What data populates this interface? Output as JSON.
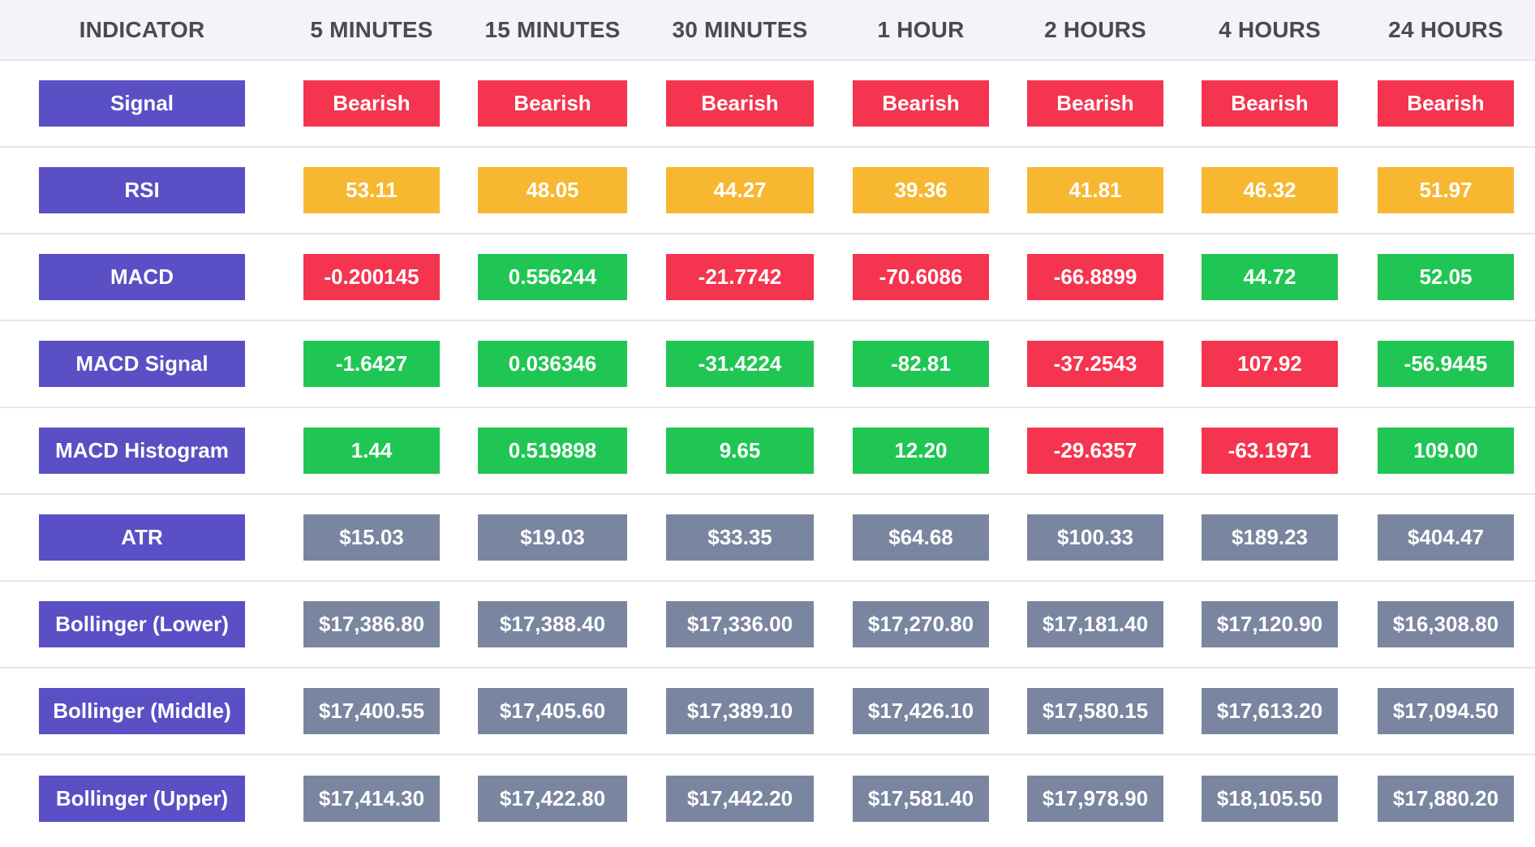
{
  "header": {
    "columns": [
      "INDICATOR",
      "5 MINUTES",
      "15 MINUTES",
      "30 MINUTES",
      "1 HOUR",
      "2 HOURS",
      "4 HOURS",
      "24 HOURS"
    ]
  },
  "colors": {
    "indicator": "#5a4fc4",
    "bearish": "#f5344f",
    "neutral": "#f7b731",
    "bullish": "#20c653",
    "price": "#7a86a0",
    "header_bg": "#f3f3f8"
  },
  "rows": [
    {
      "indicator": "Signal",
      "values": [
        "Bearish",
        "Bearish",
        "Bearish",
        "Bearish",
        "Bearish",
        "Bearish",
        "Bearish"
      ],
      "states": [
        "bear",
        "bear",
        "bear",
        "bear",
        "bear",
        "bear",
        "bear"
      ]
    },
    {
      "indicator": "RSI",
      "values": [
        "53.11",
        "48.05",
        "44.27",
        "39.36",
        "41.81",
        "46.32",
        "51.97"
      ],
      "states": [
        "neutral",
        "neutral",
        "neutral",
        "neutral",
        "neutral",
        "neutral",
        "neutral"
      ]
    },
    {
      "indicator": "MACD",
      "values": [
        "-0.200145",
        "0.556244",
        "-21.7742",
        "-70.6086",
        "-66.8899",
        "44.72",
        "52.05"
      ],
      "states": [
        "bear",
        "bull",
        "bear",
        "bear",
        "bear",
        "bull",
        "bull"
      ]
    },
    {
      "indicator": "MACD Signal",
      "values": [
        "-1.6427",
        "0.036346",
        "-31.4224",
        "-82.81",
        "-37.2543",
        "107.92",
        "-56.9445"
      ],
      "states": [
        "bull",
        "bull",
        "bull",
        "bull",
        "bear",
        "bear",
        "bull"
      ]
    },
    {
      "indicator": "MACD Histogram",
      "values": [
        "1.44",
        "0.519898",
        "9.65",
        "12.20",
        "-29.6357",
        "-63.1971",
        "109.00"
      ],
      "states": [
        "bull",
        "bull",
        "bull",
        "bull",
        "bear",
        "bear",
        "bull"
      ]
    },
    {
      "indicator": "ATR",
      "values": [
        "$15.03",
        "$19.03",
        "$33.35",
        "$64.68",
        "$100.33",
        "$189.23",
        "$404.47"
      ],
      "states": [
        "grey",
        "grey",
        "grey",
        "grey",
        "grey",
        "grey",
        "grey"
      ]
    },
    {
      "indicator": "Bollinger (Lower)",
      "values": [
        "$17,386.80",
        "$17,388.40",
        "$17,336.00",
        "$17,270.80",
        "$17,181.40",
        "$17,120.90",
        "$16,308.80"
      ],
      "states": [
        "grey",
        "grey",
        "grey",
        "grey",
        "grey",
        "grey",
        "grey"
      ]
    },
    {
      "indicator": "Bollinger (Middle)",
      "values": [
        "$17,400.55",
        "$17,405.60",
        "$17,389.10",
        "$17,426.10",
        "$17,580.15",
        "$17,613.20",
        "$17,094.50"
      ],
      "states": [
        "grey",
        "grey",
        "grey",
        "grey",
        "grey",
        "grey",
        "grey"
      ]
    },
    {
      "indicator": "Bollinger (Upper)",
      "values": [
        "$17,414.30",
        "$17,422.80",
        "$17,442.20",
        "$17,581.40",
        "$17,978.90",
        "$18,105.50",
        "$17,880.20"
      ],
      "states": [
        "grey",
        "grey",
        "grey",
        "grey",
        "grey",
        "grey",
        "grey"
      ]
    }
  ]
}
